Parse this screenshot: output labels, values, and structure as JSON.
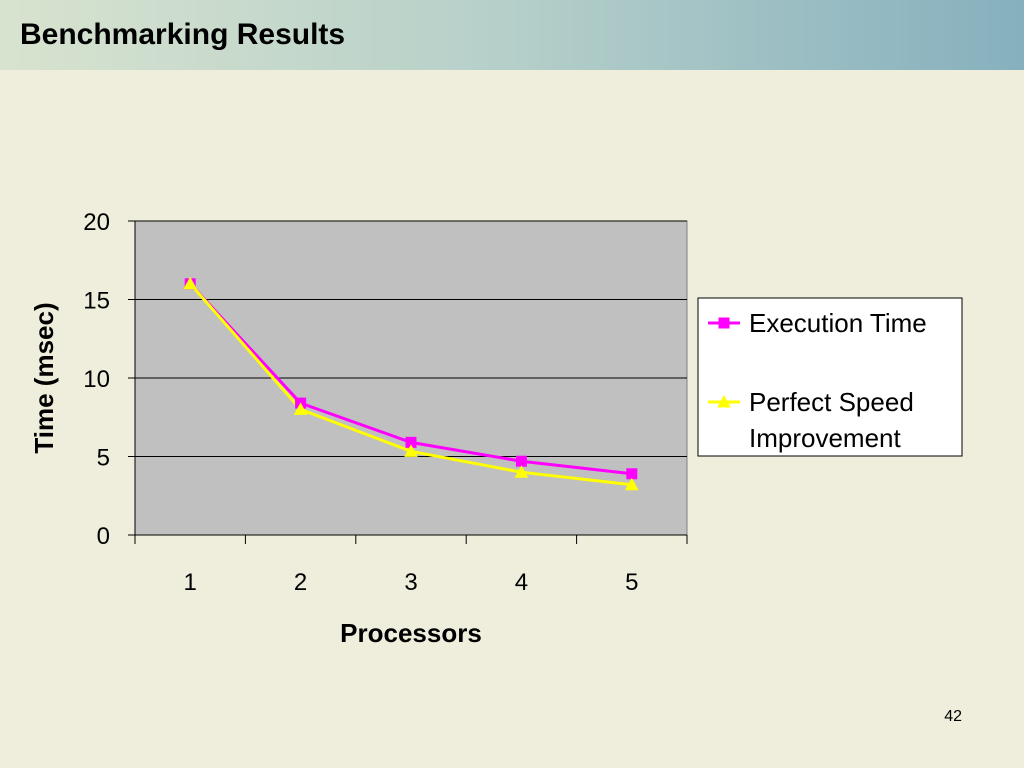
{
  "slide": {
    "title": "Benchmarking Results",
    "page_number": "42"
  },
  "chart_data": {
    "type": "line",
    "title": "",
    "xlabel": "Processors",
    "ylabel": "Time (msec)",
    "categories": [
      "1",
      "2",
      "3",
      "4",
      "5"
    ],
    "ylim": [
      0,
      20
    ],
    "yticks": [
      0,
      5,
      10,
      15,
      20
    ],
    "grid": true,
    "legend_position": "right",
    "plot_background": "#c0c0c0",
    "series": [
      {
        "name": "Execution Time",
        "values": [
          16,
          8.4,
          5.9,
          4.7,
          3.9
        ],
        "color": "#ff00ff",
        "marker": "square"
      },
      {
        "name": "Perfect Speed Improvement",
        "values": [
          16,
          8,
          5.33,
          4,
          3.2
        ],
        "color": "#ffff00",
        "marker": "triangle"
      }
    ]
  }
}
